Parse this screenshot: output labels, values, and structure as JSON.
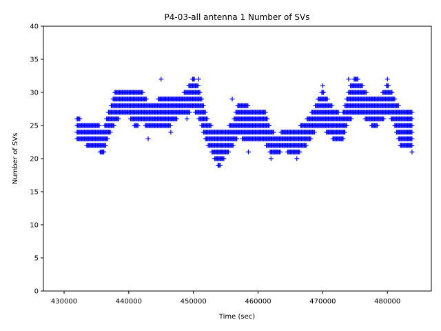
{
  "chart_data": {
    "type": "scatter",
    "title": "P4-03-all antenna 1 Number of SVs",
    "xlabel": "Time (sec)",
    "ylabel": "Number of SVs",
    "xlim": [
      426800,
      486800
    ],
    "ylim": [
      0,
      40
    ],
    "xticks": [
      430000,
      440000,
      450000,
      460000,
      470000,
      480000
    ],
    "yticks": [
      0,
      5,
      10,
      15,
      20,
      25,
      30,
      35,
      40
    ],
    "marker": "+",
    "color": "#0000ff",
    "series": [
      {
        "name": "antenna 1",
        "band_knots": {
          "t": [
            432000,
            433000,
            434000,
            435000,
            436000,
            437000,
            438000,
            439000,
            440000,
            441000,
            442000,
            443000,
            444000,
            445000,
            446000,
            447000,
            448000,
            449000,
            450000,
            451000,
            452000,
            453000,
            454000,
            455000,
            456000,
            457000,
            458000,
            459000,
            460000,
            461000,
            462000,
            463000,
            464000,
            465000,
            466000,
            467000,
            468000,
            469000,
            470000,
            471000,
            472000,
            473000,
            474000,
            475000,
            476000,
            477000,
            478000,
            479000,
            480000,
            481000,
            482000,
            483000,
            483800
          ],
          "low": [
            23,
            23,
            22,
            22,
            21,
            24,
            26,
            27,
            27,
            25,
            26,
            25,
            25,
            25,
            25,
            26,
            27,
            27,
            28,
            26,
            23,
            21,
            19,
            21,
            22,
            24,
            23,
            23,
            23,
            23,
            21,
            21,
            22,
            21,
            21,
            22,
            23,
            25,
            25,
            24,
            23,
            23,
            26,
            27,
            27,
            26,
            25,
            26,
            27,
            26,
            22,
            22,
            22
          ],
          "high": [
            26,
            25,
            25,
            25,
            24,
            27,
            30,
            30,
            30,
            30,
            30,
            28,
            28,
            29,
            29,
            29,
            29,
            30,
            32,
            30,
            26,
            24,
            24,
            24,
            25,
            28,
            28,
            27,
            27,
            27,
            24,
            23,
            24,
            24,
            24,
            25,
            26,
            28,
            30,
            28,
            27,
            26,
            30,
            32,
            31,
            29,
            29,
            29,
            31,
            29,
            27,
            27,
            27
          ]
        },
        "outliers": [
          {
            "x": 433500,
            "y": 22
          },
          {
            "x": 436000,
            "y": 21
          },
          {
            "x": 443000,
            "y": 23
          },
          {
            "x": 445000,
            "y": 32
          },
          {
            "x": 446500,
            "y": 24
          },
          {
            "x": 449000,
            "y": 26
          },
          {
            "x": 450800,
            "y": 32
          },
          {
            "x": 453800,
            "y": 19
          },
          {
            "x": 456000,
            "y": 29
          },
          {
            "x": 458500,
            "y": 21
          },
          {
            "x": 462000,
            "y": 20
          },
          {
            "x": 466000,
            "y": 20
          },
          {
            "x": 470000,
            "y": 31
          },
          {
            "x": 473000,
            "y": 23
          },
          {
            "x": 474000,
            "y": 32
          },
          {
            "x": 475500,
            "y": 27
          },
          {
            "x": 480000,
            "y": 32
          },
          {
            "x": 482000,
            "y": 22
          },
          {
            "x": 483800,
            "y": 21
          }
        ]
      }
    ]
  }
}
